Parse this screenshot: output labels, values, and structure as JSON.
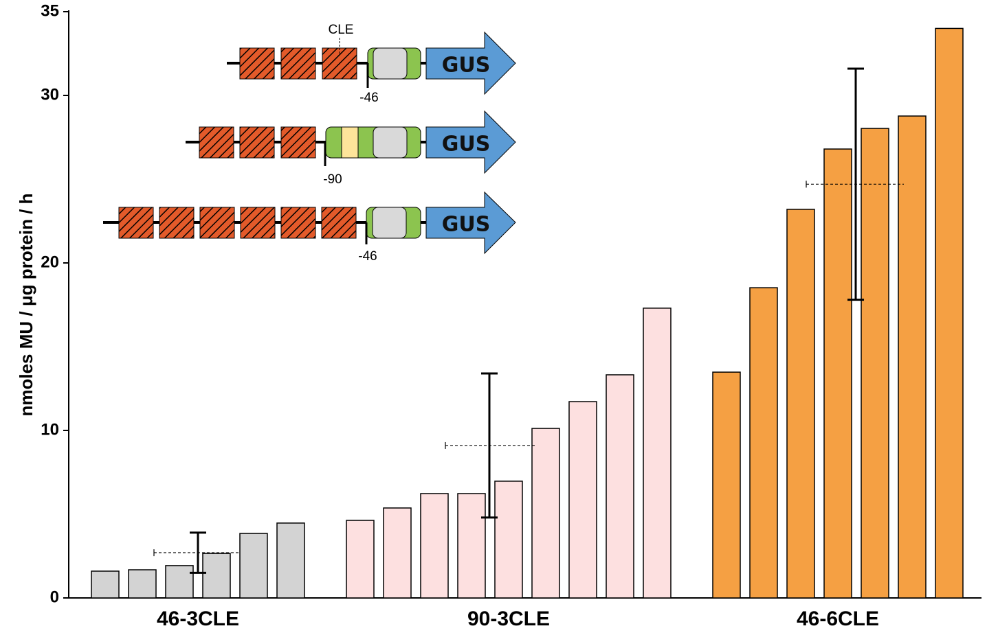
{
  "chart_data": {
    "type": "bar",
    "ylabel": "nmoles MU / μg protein / h",
    "ylim": [
      0,
      35
    ],
    "yticks": [
      0,
      10,
      20,
      30,
      35
    ],
    "groups": [
      {
        "name": "46-3CLE",
        "color": "#d3d3d3",
        "values": [
          1.6,
          1.68,
          1.93,
          2.66,
          3.85,
          4.47
        ],
        "mean": 2.7,
        "error": 1.2
      },
      {
        "name": "90-3CLE",
        "color": "#fde0e0",
        "values": [
          4.63,
          5.37,
          6.23,
          6.23,
          6.97,
          10.12,
          11.72,
          13.32,
          17.3
        ],
        "mean": 9.1,
        "error": 4.3
      },
      {
        "name": "46-6CLE",
        "color": "#f5a043",
        "values": [
          13.48,
          18.52,
          23.2,
          26.8,
          28.03,
          28.77,
          34.0
        ],
        "mean": 24.7,
        "error": 6.9
      }
    ],
    "diagram": {
      "element_label": "CLE",
      "reporter": "GUS",
      "positions": [
        "-46",
        "-90",
        "-46"
      ]
    }
  }
}
